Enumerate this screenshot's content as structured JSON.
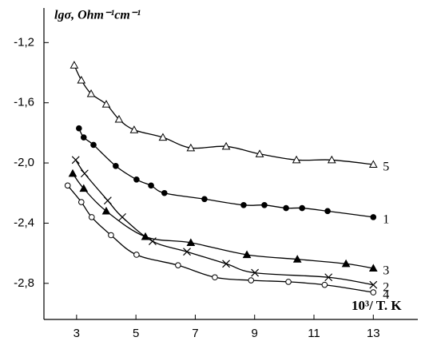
{
  "chart_data": {
    "type": "scatter",
    "y_label": "lgσ, Ohm⁻¹cm⁻¹",
    "x_label": "10³/ T. K",
    "xlim": [
      1.9,
      14.5
    ],
    "ylim": [
      -3.04,
      -0.97
    ],
    "xticks": [
      3,
      5,
      7,
      9,
      11,
      13
    ],
    "yticks": [
      {
        "value": -1.2,
        "label": "-1,2"
      },
      {
        "value": -1.6,
        "label": "-1,6"
      },
      {
        "value": -2.0,
        "label": "-2,0"
      },
      {
        "value": -2.4,
        "label": "-2,4"
      },
      {
        "value": -2.8,
        "label": "-2,8"
      }
    ],
    "series": [
      {
        "name": "5",
        "color": "#000000",
        "marker": "open-triangle",
        "x": [
          2.92,
          3.16,
          3.49,
          4.0,
          4.43,
          4.94,
          5.91,
          6.85,
          8.04,
          9.17,
          10.41,
          11.6,
          13.0
        ],
        "values": [
          -1.35,
          -1.45,
          -1.54,
          -1.61,
          -1.71,
          -1.78,
          -1.83,
          -1.9,
          -1.89,
          -1.94,
          -1.98,
          -1.98,
          -2.01
        ]
      },
      {
        "name": "1",
        "color": "#000000",
        "marker": "filled-circle",
        "x": [
          3.08,
          3.24,
          3.57,
          4.32,
          5.02,
          5.51,
          5.96,
          7.31,
          8.63,
          9.33,
          10.06,
          10.6,
          11.46,
          13.0
        ],
        "values": [
          -1.77,
          -1.83,
          -1.88,
          -2.02,
          -2.11,
          -2.15,
          -2.2,
          -2.24,
          -2.28,
          -2.28,
          -2.3,
          -2.3,
          -2.32,
          -2.36
        ]
      },
      {
        "name": "3",
        "color": "#000000",
        "marker": "filled-triangle",
        "x": [
          2.87,
          3.24,
          4.0,
          5.32,
          6.85,
          8.74,
          10.44,
          12.08,
          13.0
        ],
        "values": [
          -2.07,
          -2.17,
          -2.32,
          -2.49,
          -2.53,
          -2.61,
          -2.64,
          -2.67,
          -2.7
        ]
      },
      {
        "name": "2",
        "color": "#000000",
        "marker": "cross",
        "x": [
          2.97,
          3.27,
          4.05,
          4.54,
          5.56,
          6.72,
          8.04,
          9.01,
          11.49,
          13.0
        ],
        "values": [
          -1.98,
          -2.07,
          -2.25,
          -2.36,
          -2.52,
          -2.59,
          -2.67,
          -2.73,
          -2.76,
          -2.81
        ]
      },
      {
        "name": "4",
        "color": "#000000",
        "marker": "open-circle",
        "x": [
          2.7,
          3.16,
          3.51,
          4.16,
          5.02,
          6.42,
          7.66,
          8.88,
          10.14,
          11.36,
          13.0
        ],
        "values": [
          -2.15,
          -2.26,
          -2.36,
          -2.48,
          -2.61,
          -2.68,
          -2.76,
          -2.78,
          -2.79,
          -2.81,
          -2.86
        ]
      }
    ]
  }
}
